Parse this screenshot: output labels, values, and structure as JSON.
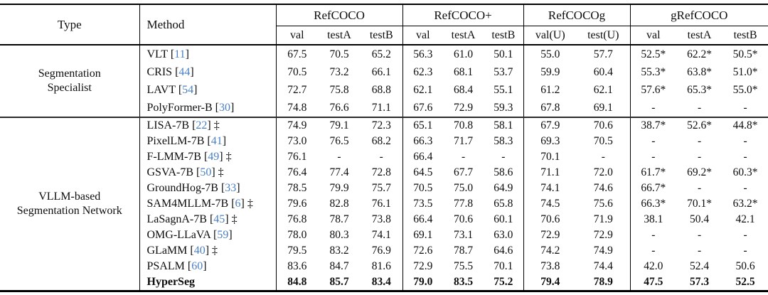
{
  "table": {
    "columns": {
      "type_label": "Type",
      "method_label": "Method",
      "groups": [
        {
          "label": "RefCOCO",
          "subcols": [
            "val",
            "testA",
            "testB"
          ]
        },
        {
          "label": "RefCOCO+",
          "subcols": [
            "val",
            "testA",
            "testB"
          ]
        },
        {
          "label": "RefCOCOg",
          "subcols": [
            "val(U)",
            "test(U)"
          ]
        },
        {
          "label": "gRefCOCO",
          "subcols": [
            "val",
            "testA",
            "testB"
          ]
        }
      ]
    },
    "citation_color": "#4a80c4",
    "dagger_symbol": "‡",
    "blocks": [
      {
        "type_lines": [
          "Segmentation",
          "Specialist"
        ],
        "rows": [
          {
            "method": "VLT",
            "cite": "11",
            "dagger": false,
            "bold": false,
            "values": [
              "67.5",
              "70.5",
              "65.2",
              "56.3",
              "61.0",
              "50.1",
              "55.0",
              "57.7",
              "52.5*",
              "62.2*",
              "50.5*"
            ]
          },
          {
            "method": "CRIS",
            "cite": "44",
            "dagger": false,
            "bold": false,
            "values": [
              "70.5",
              "73.2",
              "66.1",
              "62.3",
              "68.1",
              "53.7",
              "59.9",
              "60.4",
              "55.3*",
              "63.8*",
              "51.0*"
            ]
          },
          {
            "method": "LAVT",
            "cite": "54",
            "dagger": false,
            "bold": false,
            "values": [
              "72.7",
              "75.8",
              "68.8",
              "62.1",
              "68.4",
              "55.1",
              "61.2",
              "62.1",
              "57.6*",
              "65.3*",
              "55.0*"
            ]
          },
          {
            "method": "PolyFormer-B",
            "cite": "30",
            "dagger": false,
            "bold": false,
            "values": [
              "74.8",
              "76.6",
              "71.1",
              "67.6",
              "72.9",
              "59.3",
              "67.8",
              "69.1",
              "-",
              "-",
              "-"
            ]
          }
        ]
      },
      {
        "type_lines": [
          "VLLM-based",
          "Segmentation Network"
        ],
        "rows": [
          {
            "method": "LISA-7B",
            "cite": "22",
            "dagger": true,
            "bold": false,
            "values": [
              "74.9",
              "79.1",
              "72.3",
              "65.1",
              "70.8",
              "58.1",
              "67.9",
              "70.6",
              "38.7*",
              "52.6*",
              "44.8*"
            ]
          },
          {
            "method": "PixelLM-7B",
            "cite": "41",
            "dagger": false,
            "bold": false,
            "values": [
              "73.0",
              "76.5",
              "68.2",
              "66.3",
              "71.7",
              "58.3",
              "69.3",
              "70.5",
              "-",
              "-",
              "-"
            ]
          },
          {
            "method": "F-LMM-7B",
            "cite": "49",
            "dagger": true,
            "bold": false,
            "values": [
              "76.1",
              "-",
              "-",
              "66.4",
              "-",
              "-",
              "70.1",
              "-",
              "-",
              "-",
              "-"
            ]
          },
          {
            "method": "GSVA-7B",
            "cite": "50",
            "dagger": true,
            "bold": false,
            "values": [
              "76.4",
              "77.4",
              "72.8",
              "64.5",
              "67.7",
              "58.6",
              "71.1",
              "72.0",
              "61.7*",
              "69.2*",
              "60.3*"
            ]
          },
          {
            "method": "GroundHog-7B",
            "cite": "33",
            "dagger": false,
            "bold": false,
            "values": [
              "78.5",
              "79.9",
              "75.7",
              "70.5",
              "75.0",
              "64.9",
              "74.1",
              "74.6",
              "66.7*",
              "-",
              "-"
            ]
          },
          {
            "method": "SAM4MLLM-7B",
            "cite": "6",
            "dagger": true,
            "bold": false,
            "values": [
              "79.6",
              "82.8",
              "76.1",
              "73.5",
              "77.8",
              "65.8",
              "74.5",
              "75.6",
              "66.3*",
              "70.1*",
              "63.2*"
            ]
          },
          {
            "method": "LaSagnA-7B",
            "cite": "45",
            "dagger": true,
            "bold": false,
            "values": [
              "76.8",
              "78.7",
              "73.8",
              "66.4",
              "70.6",
              "60.1",
              "70.6",
              "71.9",
              "38.1",
              "50.4",
              "42.1"
            ]
          },
          {
            "method": "OMG-LLaVA",
            "cite": "59",
            "dagger": false,
            "bold": false,
            "values": [
              "78.0",
              "80.3",
              "74.1",
              "69.1",
              "73.1",
              "63.0",
              "72.9",
              "72.9",
              "-",
              "-",
              "-"
            ]
          },
          {
            "method": "GLaMM",
            "cite": "40",
            "dagger": true,
            "bold": false,
            "values": [
              "79.5",
              "83.2",
              "76.9",
              "72.6",
              "78.7",
              "64.6",
              "74.2",
              "74.9",
              "-",
              "-",
              "-"
            ]
          },
          {
            "method": "PSALM",
            "cite": "60",
            "dagger": false,
            "bold": false,
            "values": [
              "83.6",
              "84.7",
              "81.6",
              "72.9",
              "75.5",
              "70.1",
              "73.8",
              "74.4",
              "42.0",
              "52.4",
              "50.6"
            ]
          },
          {
            "method": "HyperSeg",
            "cite": null,
            "dagger": false,
            "bold": true,
            "values": [
              "84.8",
              "85.7",
              "83.4",
              "79.0",
              "83.5",
              "75.2",
              "79.4",
              "78.9",
              "47.5",
              "57.3",
              "52.5"
            ]
          }
        ]
      }
    ]
  }
}
